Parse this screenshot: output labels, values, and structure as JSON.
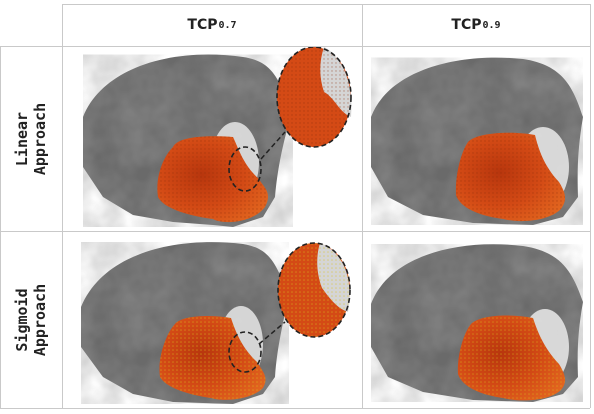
{
  "columns": [
    {
      "main": "TCP",
      "sub": "0.7"
    },
    {
      "main": "TCP",
      "sub": "0.9"
    }
  ],
  "rows": [
    {
      "line1": "Linear",
      "line2": "Approach"
    },
    {
      "line1": "Sigmoid",
      "line2": "Approach"
    }
  ],
  "colors": {
    "activation": "#d8541c",
    "activation_dark": "#b8360d",
    "brain_gray": "#555555",
    "border": "#c9c9c9"
  }
}
